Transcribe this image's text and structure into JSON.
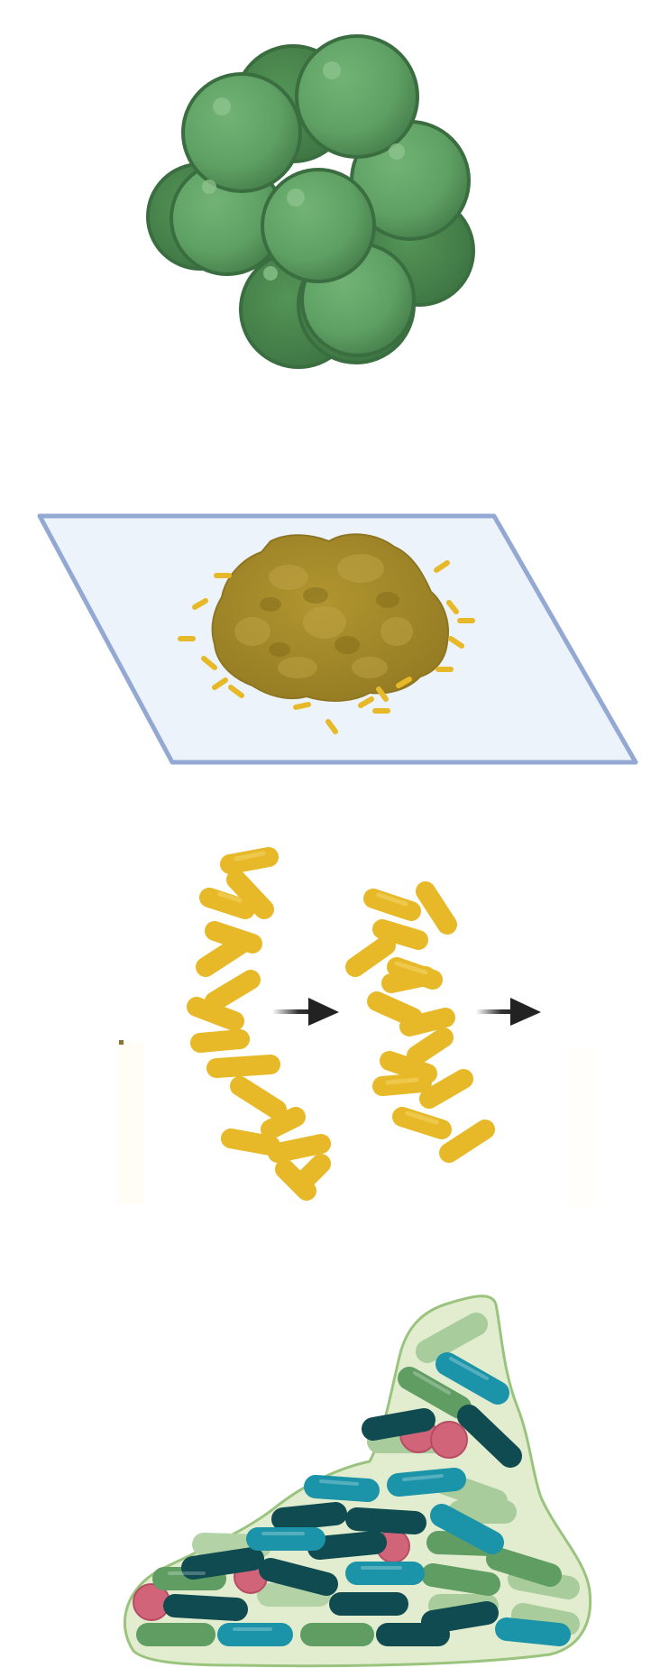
{
  "panels": [
    {
      "name": "green-spherical-cell-cluster"
    },
    {
      "name": "golden-colony-on-plate"
    },
    {
      "name": "rod-chain-division-steps"
    },
    {
      "name": "mixed-rod-biofilm"
    }
  ],
  "colors": {
    "sphere_light": "#66a96a",
    "sphere_dark": "#3f7f46",
    "sphere_outline": "#3a6e40",
    "colony_fill": "#a48a28",
    "colony_dark": "#8a7220",
    "plate_fill": "#edf3fb",
    "plate_stroke": "#93a9d3",
    "rod_yellow": "#e7b928",
    "rod_yellow_edge": "#c99c16",
    "arrow": "#222222",
    "biofilm_matrix": "#e2edcf",
    "biofilm_outline": "#9ac47e",
    "rod_teal": "#1b93a8",
    "rod_dark_teal": "#0f4b50",
    "rod_green": "#5f9d63",
    "rod_pale_green": "#97c38f",
    "cell_pink": "#d2647a"
  }
}
